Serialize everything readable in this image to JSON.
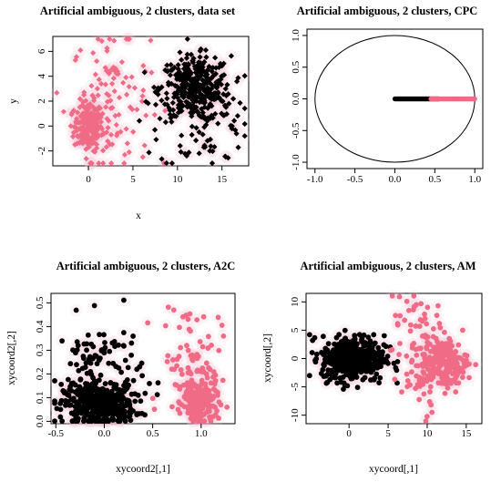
{
  "chart_data": [
    {
      "type": "scatter",
      "title": "Artificial ambiguous, 2 clusters, data set",
      "xlabel": "x",
      "ylabel": "y",
      "xlim": [
        -4,
        18
      ],
      "ylim": [
        -3.2,
        7.2
      ],
      "xticks": [
        0,
        5,
        10,
        15
      ],
      "yticks": [
        -2,
        0,
        2,
        4,
        6
      ],
      "series": [
        {
          "color": "#f06b85",
          "values": [
            {
              "x_center": 0,
              "y_center": 0,
              "x_sd": 0.8,
              "y_sd": 1.0,
              "n": 180
            },
            {
              "x_center": 2.5,
              "y_center": 2.0,
              "x_sd": 2.2,
              "y_sd": 2.8,
              "n": 120
            }
          ]
        },
        {
          "color": "#000000",
          "values": [
            {
              "x_center": 12,
              "y_center": 3,
              "x_sd": 2.0,
              "y_sd": 1.3,
              "n": 380
            },
            {
              "x_center": 13,
              "y_center": 0,
              "x_sd": 2.5,
              "y_sd": 1.8,
              "n": 60
            }
          ]
        }
      ]
    },
    {
      "type": "scatter",
      "title": "Artificial ambiguous, 2 clusters, CPC",
      "xlabel": "",
      "ylabel": "",
      "xlim": [
        -1.1,
        1.1
      ],
      "ylim": [
        -1.1,
        1.1
      ],
      "xticks": [
        "-1.0",
        "-0.5",
        "0.0",
        "0.5",
        "1.0"
      ],
      "yticks": [
        "-1.0",
        "-0.5",
        "0.0",
        "0.5",
        "1.0"
      ],
      "circle_radius": 1.0,
      "series": [
        {
          "color": "#000000",
          "x_range": [
            0.0,
            0.55
          ],
          "y": 0
        },
        {
          "color": "#f06b85",
          "x_range": [
            0.45,
            1.0
          ],
          "y": 0
        }
      ]
    },
    {
      "type": "scatter",
      "title": "Artificial ambiguous, 2 clusters, A2C",
      "xlabel": "xycoord2[,1]",
      "ylabel": "xycoord2[,2]",
      "xlim": [
        -0.55,
        1.35
      ],
      "ylim": [
        -0.01,
        0.54
      ],
      "xticks": [
        "-0.5",
        "0.0",
        "0.5",
        "1.0"
      ],
      "yticks": [
        "0.0",
        "0.1",
        "0.2",
        "0.3",
        "0.4",
        "0.5"
      ],
      "series": [
        {
          "color": "#000000",
          "values": [
            {
              "x_center": -0.05,
              "y_center": 0.07,
              "x_sd": 0.18,
              "y_sd": 0.04,
              "n": 380
            },
            {
              "x_center": -0.05,
              "y_center": 0.2,
              "x_sd": 0.22,
              "y_sd": 0.12,
              "n": 120
            }
          ]
        },
        {
          "color": "#f06b85",
          "values": [
            {
              "x_center": 1.0,
              "y_center": 0.08,
              "x_sd": 0.09,
              "y_sd": 0.05,
              "n": 150
            },
            {
              "x_center": 0.9,
              "y_center": 0.25,
              "x_sd": 0.15,
              "y_sd": 0.13,
              "n": 90
            }
          ]
        }
      ]
    },
    {
      "type": "scatter",
      "title": "Artificial ambiguous, 2 clusters, AM",
      "xlabel": "xycoord[,1]",
      "ylabel": "xycoord[,2]",
      "xlim": [
        -5.5,
        17
      ],
      "ylim": [
        -11.5,
        11.5
      ],
      "xticks": [
        "0",
        "5",
        "10",
        "15"
      ],
      "yticks": [
        "-10",
        "-5",
        "0",
        "5",
        "10"
      ],
      "series": [
        {
          "color": "#000000",
          "values": [
            {
              "x_center": 0.5,
              "y_center": 0,
              "x_sd": 2.0,
              "y_sd": 2.0,
              "n": 420
            }
          ]
        },
        {
          "color": "#f06b85",
          "values": [
            {
              "x_center": 12,
              "y_center": -1,
              "x_sd": 1.6,
              "y_sd": 2.2,
              "n": 160
            },
            {
              "x_center": 9.5,
              "y_center": 1,
              "x_sd": 2.0,
              "y_sd": 5.0,
              "n": 110
            }
          ]
        }
      ]
    }
  ]
}
